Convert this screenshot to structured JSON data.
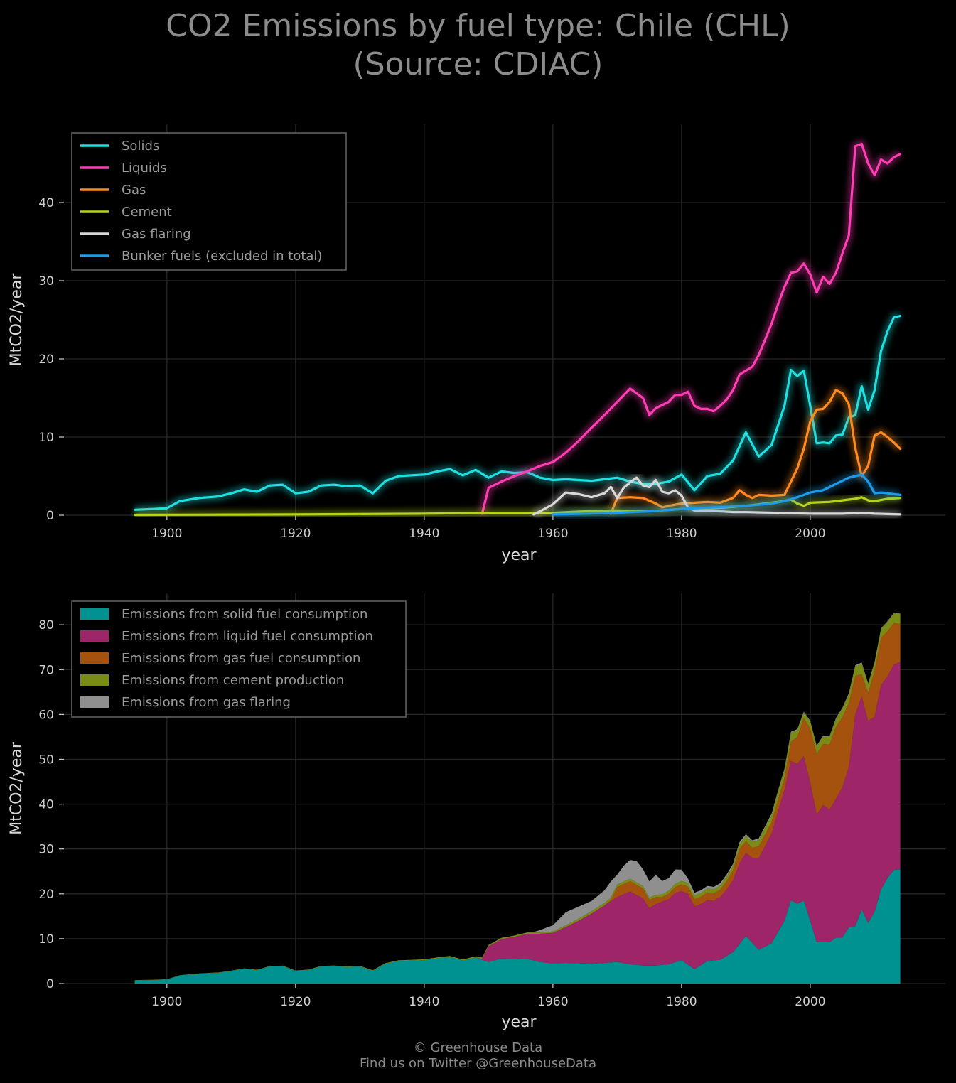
{
  "title": {
    "line1": "CO2 Emissions by fuel type: Chile (CHL)",
    "line2": "(Source: CDIAC)"
  },
  "footer": {
    "line1": "© Greenhouse Data",
    "line2": "Find us on Twitter @GreenhouseData"
  },
  "colors": {
    "background": "#000000",
    "grid": "#262626",
    "solids": "#1fe0e0",
    "liquids": "#ff3db4",
    "gas": "#ff8a1f",
    "cement": "#b8d41a",
    "flaring": "#d8d8d8",
    "bunker": "#1e9be8",
    "area_solids": "#009191",
    "area_liquids": "#9e2568",
    "area_gas": "#a5520f",
    "area_cement": "#7a8b16",
    "area_flaring": "#8f8f8f"
  },
  "chart_data": [
    {
      "type": "line",
      "xlabel": "year",
      "ylabel": "MtCO2/year",
      "xlim": [
        1884,
        2021
      ],
      "ylim": [
        0,
        50
      ],
      "xticks": [
        1900,
        1920,
        1940,
        1960,
        1980,
        2000
      ],
      "yticks": [
        0,
        10,
        20,
        30,
        40
      ],
      "grid": true,
      "legend_position": "top-left",
      "series": [
        {
          "name": "Solids",
          "color_key": "solids",
          "points": [
            [
              1895,
              0.7
            ],
            [
              1898,
              0.8
            ],
            [
              1900,
              0.9
            ],
            [
              1902,
              1.8
            ],
            [
              1905,
              2.2
            ],
            [
              1908,
              2.4
            ],
            [
              1910,
              2.8
            ],
            [
              1912,
              3.3
            ],
            [
              1914,
              3.0
            ],
            [
              1916,
              3.8
            ],
            [
              1918,
              3.9
            ],
            [
              1920,
              2.8
            ],
            [
              1922,
              3.0
            ],
            [
              1924,
              3.8
            ],
            [
              1926,
              3.9
            ],
            [
              1928,
              3.7
            ],
            [
              1930,
              3.8
            ],
            [
              1932,
              2.8
            ],
            [
              1934,
              4.4
            ],
            [
              1936,
              5.0
            ],
            [
              1938,
              5.1
            ],
            [
              1940,
              5.2
            ],
            [
              1942,
              5.6
            ],
            [
              1944,
              5.9
            ],
            [
              1946,
              5.1
            ],
            [
              1948,
              5.8
            ],
            [
              1950,
              4.8
            ],
            [
              1952,
              5.6
            ],
            [
              1954,
              5.4
            ],
            [
              1956,
              5.5
            ],
            [
              1958,
              4.8
            ],
            [
              1960,
              4.5
            ],
            [
              1962,
              4.6
            ],
            [
              1964,
              4.5
            ],
            [
              1966,
              4.4
            ],
            [
              1968,
              4.6
            ],
            [
              1970,
              4.8
            ],
            [
              1972,
              4.3
            ],
            [
              1974,
              4.0
            ],
            [
              1976,
              4.0
            ],
            [
              1978,
              4.3
            ],
            [
              1980,
              5.2
            ],
            [
              1982,
              3.2
            ],
            [
              1984,
              5.0
            ],
            [
              1986,
              5.3
            ],
            [
              1988,
              7.0
            ],
            [
              1990,
              10.6
            ],
            [
              1992,
              7.5
            ],
            [
              1994,
              9.0
            ],
            [
              1996,
              14.0
            ],
            [
              1997,
              18.6
            ],
            [
              1998,
              17.8
            ],
            [
              1999,
              18.5
            ],
            [
              2000,
              14.0
            ],
            [
              2001,
              9.2
            ],
            [
              2002,
              9.3
            ],
            [
              2003,
              9.2
            ],
            [
              2004,
              10.2
            ],
            [
              2005,
              10.3
            ],
            [
              2006,
              12.5
            ],
            [
              2007,
              12.8
            ],
            [
              2008,
              16.5
            ],
            [
              2009,
              13.5
            ],
            [
              2010,
              16.0
            ],
            [
              2011,
              21.0
            ],
            [
              2012,
              23.5
            ],
            [
              2013,
              25.3
            ],
            [
              2014,
              25.5
            ]
          ]
        },
        {
          "name": "Liquids",
          "color_key": "liquids",
          "points": [
            [
              1949,
              0.2
            ],
            [
              1950,
              3.5
            ],
            [
              1952,
              4.3
            ],
            [
              1954,
              5.0
            ],
            [
              1956,
              5.6
            ],
            [
              1958,
              6.3
            ],
            [
              1960,
              6.8
            ],
            [
              1962,
              8.0
            ],
            [
              1964,
              9.5
            ],
            [
              1966,
              11.2
            ],
            [
              1968,
              12.8
            ],
            [
              1970,
              14.5
            ],
            [
              1972,
              16.2
            ],
            [
              1974,
              15.0
            ],
            [
              1975,
              12.8
            ],
            [
              1976,
              13.7
            ],
            [
              1978,
              14.5
            ],
            [
              1979,
              15.4
            ],
            [
              1980,
              15.4
            ],
            [
              1981,
              15.8
            ],
            [
              1982,
              14.0
            ],
            [
              1983,
              13.6
            ],
            [
              1984,
              13.6
            ],
            [
              1985,
              13.3
            ],
            [
              1986,
              14.0
            ],
            [
              1987,
              14.8
            ],
            [
              1988,
              16.0
            ],
            [
              1989,
              18.0
            ],
            [
              1990,
              18.5
            ],
            [
              1991,
              19.0
            ],
            [
              1992,
              20.5
            ],
            [
              1993,
              22.5
            ],
            [
              1994,
              24.5
            ],
            [
              1995,
              27.0
            ],
            [
              1996,
              29.2
            ],
            [
              1997,
              31.0
            ],
            [
              1998,
              31.2
            ],
            [
              1999,
              32.2
            ],
            [
              2000,
              30.8
            ],
            [
              2001,
              28.5
            ],
            [
              2002,
              30.5
            ],
            [
              2003,
              29.6
            ],
            [
              2004,
              31.0
            ],
            [
              2005,
              33.5
            ],
            [
              2006,
              35.8
            ],
            [
              2007,
              47.2
            ],
            [
              2008,
              47.5
            ],
            [
              2009,
              45.0
            ],
            [
              2010,
              43.5
            ],
            [
              2011,
              45.5
            ],
            [
              2012,
              45.0
            ],
            [
              2013,
              45.8
            ],
            [
              2014,
              46.2
            ]
          ]
        },
        {
          "name": "Gas",
          "color_key": "gas",
          "points": [
            [
              1969,
              0.2
            ],
            [
              1970,
              2.2
            ],
            [
              1972,
              2.3
            ],
            [
              1974,
              2.2
            ],
            [
              1976,
              1.5
            ],
            [
              1977,
              1.0
            ],
            [
              1978,
              1.2
            ],
            [
              1980,
              1.5
            ],
            [
              1982,
              1.6
            ],
            [
              1984,
              1.7
            ],
            [
              1986,
              1.6
            ],
            [
              1988,
              2.2
            ],
            [
              1989,
              3.2
            ],
            [
              1990,
              2.6
            ],
            [
              1991,
              2.2
            ],
            [
              1992,
              2.6
            ],
            [
              1994,
              2.5
            ],
            [
              1996,
              2.6
            ],
            [
              1998,
              6.0
            ],
            [
              1999,
              8.5
            ],
            [
              2000,
              12.0
            ],
            [
              2001,
              13.5
            ],
            [
              2002,
              13.6
            ],
            [
              2003,
              14.5
            ],
            [
              2004,
              16.0
            ],
            [
              2005,
              15.6
            ],
            [
              2006,
              14.2
            ],
            [
              2007,
              8.6
            ],
            [
              2008,
              5.0
            ],
            [
              2009,
              6.3
            ],
            [
              2010,
              10.2
            ],
            [
              2011,
              10.6
            ],
            [
              2012,
              10.0
            ],
            [
              2013,
              9.3
            ],
            [
              2014,
              8.5
            ]
          ]
        },
        {
          "name": "Cement",
          "color_key": "cement",
          "points": [
            [
              1895,
              0.05
            ],
            [
              1920,
              0.1
            ],
            [
              1940,
              0.2
            ],
            [
              1950,
              0.3
            ],
            [
              1960,
              0.3
            ],
            [
              1965,
              0.5
            ],
            [
              1970,
              0.6
            ],
            [
              1975,
              0.5
            ],
            [
              1980,
              0.8
            ],
            [
              1985,
              0.9
            ],
            [
              1990,
              1.2
            ],
            [
              1995,
              1.7
            ],
            [
              1997,
              2.0
            ],
            [
              1998,
              1.5
            ],
            [
              1999,
              1.2
            ],
            [
              2000,
              1.6
            ],
            [
              2003,
              1.7
            ],
            [
              2005,
              1.9
            ],
            [
              2007,
              2.1
            ],
            [
              2008,
              2.3
            ],
            [
              2009,
              1.9
            ],
            [
              2010,
              1.8
            ],
            [
              2012,
              2.1
            ],
            [
              2014,
              2.2
            ]
          ]
        },
        {
          "name": "Gas flaring",
          "color_key": "flaring",
          "points": [
            [
              1957,
              0.1
            ],
            [
              1958,
              0.5
            ],
            [
              1960,
              1.4
            ],
            [
              1962,
              2.9
            ],
            [
              1964,
              2.7
            ],
            [
              1966,
              2.3
            ],
            [
              1968,
              2.8
            ],
            [
              1969,
              3.6
            ],
            [
              1970,
              2.2
            ],
            [
              1971,
              3.5
            ],
            [
              1972,
              4.2
            ],
            [
              1973,
              4.8
            ],
            [
              1974,
              3.8
            ],
            [
              1975,
              3.6
            ],
            [
              1976,
              4.5
            ],
            [
              1977,
              3.0
            ],
            [
              1978,
              2.8
            ],
            [
              1979,
              3.2
            ],
            [
              1980,
              2.5
            ],
            [
              1981,
              1.0
            ],
            [
              1982,
              0.6
            ],
            [
              1984,
              0.6
            ],
            [
              1986,
              0.5
            ],
            [
              1988,
              0.4
            ],
            [
              1990,
              0.4
            ],
            [
              1995,
              0.3
            ],
            [
              2000,
              0.2
            ],
            [
              2005,
              0.2
            ],
            [
              2008,
              0.3
            ],
            [
              2010,
              0.2
            ],
            [
              2014,
              0.1
            ]
          ]
        },
        {
          "name": "Bunker fuels (excluded in total)",
          "color_key": "bunker",
          "points": [
            [
              1960,
              0.1
            ],
            [
              1970,
              0.3
            ],
            [
              1975,
              0.5
            ],
            [
              1980,
              0.8
            ],
            [
              1985,
              1.0
            ],
            [
              1990,
              1.2
            ],
            [
              1994,
              1.5
            ],
            [
              1996,
              1.8
            ],
            [
              1998,
              2.3
            ],
            [
              2000,
              2.9
            ],
            [
              2002,
              3.2
            ],
            [
              2004,
              4.0
            ],
            [
              2006,
              4.8
            ],
            [
              2008,
              5.2
            ],
            [
              2009,
              4.3
            ],
            [
              2010,
              2.8
            ],
            [
              2011,
              2.9
            ],
            [
              2012,
              2.8
            ],
            [
              2013,
              2.7
            ],
            [
              2014,
              2.6
            ]
          ]
        }
      ]
    },
    {
      "type": "area",
      "stacked": true,
      "xlabel": "year",
      "ylabel": "MtCO2/year",
      "xlim": [
        1884,
        2021
      ],
      "ylim": [
        0,
        87
      ],
      "xticks": [
        1900,
        1920,
        1940,
        1960,
        1980,
        2000
      ],
      "yticks": [
        0,
        10,
        20,
        30,
        40,
        50,
        60,
        70,
        80
      ],
      "grid": true,
      "legend_position": "top-left",
      "stack_series_from_line_chart": [
        "Solids",
        "Liquids",
        "Gas",
        "Cement",
        "Gas flaring"
      ],
      "series_labels": [
        {
          "name": "Emissions from solid fuel consumption",
          "color_key": "area_solids"
        },
        {
          "name": "Emissions from liquid fuel consumption",
          "color_key": "area_liquids"
        },
        {
          "name": "Emissions from gas fuel consumption",
          "color_key": "area_gas"
        },
        {
          "name": "Emissions from cement production",
          "color_key": "area_cement"
        },
        {
          "name": "Emissions from gas flaring",
          "color_key": "area_flaring"
        }
      ]
    }
  ]
}
